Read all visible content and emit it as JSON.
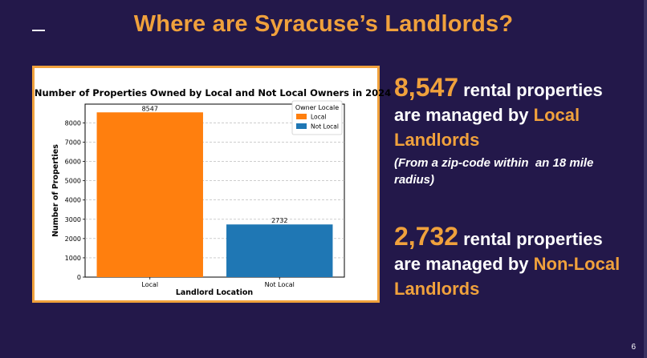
{
  "slide": {
    "title": "Where are Syracuse’s Landlords?",
    "page_number": "6"
  },
  "stats": {
    "local": {
      "number": "8,547",
      "line1_rest": "rental properties",
      "line2_pre": "are managed by ",
      "line2_accent": "Local",
      "line3_accent": "Landlords",
      "note_line1": "(From a zip-code within  an 18 mile",
      "note_line2": "radius)"
    },
    "nonlocal": {
      "number": "2,732",
      "line1_rest": "rental properties",
      "line2_pre": "are managed by ",
      "line2_accent": "Non-Local",
      "line3_accent": "Landlords"
    }
  },
  "colors": {
    "background": "#23184a",
    "accent": "#f0a13c",
    "local_bar": "#ff7f0e",
    "nonlocal_bar": "#1f77b4"
  },
  "chart_data": {
    "type": "bar",
    "title": "Number of Properties Owned by Local and Not Local Owners in 2024",
    "xlabel": "Landlord Location",
    "ylabel": "Number of Properties",
    "categories": [
      "Local",
      "Not Local"
    ],
    "values": [
      8547,
      2732
    ],
    "data_labels": [
      "8547",
      "2732"
    ],
    "ylim": [
      0,
      8974
    ],
    "yticks": [
      0,
      1000,
      2000,
      3000,
      4000,
      5000,
      6000,
      7000,
      8000
    ],
    "legend": {
      "title": "Owner Locale",
      "entries": [
        "Local",
        "Not Local"
      ],
      "placement": "top-right"
    },
    "grid": "horizontal dashed"
  }
}
